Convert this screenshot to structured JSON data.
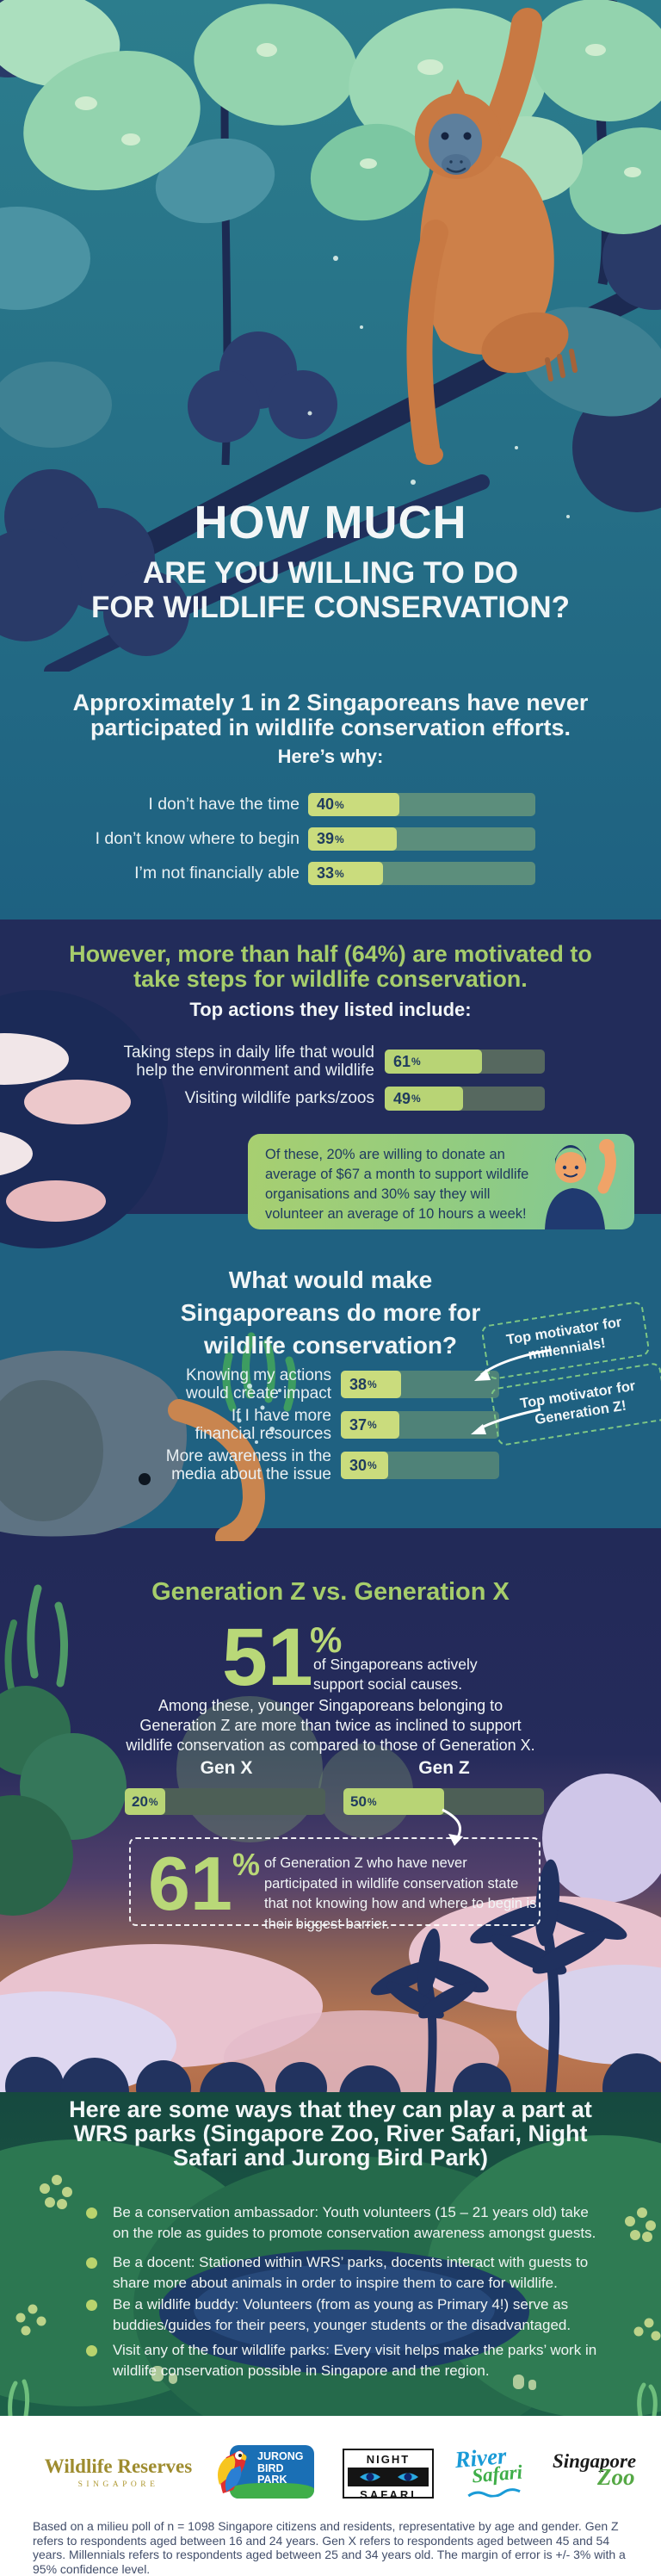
{
  "header": {
    "title_line1": "HOW MUCH",
    "title_line2": "ARE YOU WILLING TO DO",
    "title_line3": "FOR WILDLIFE CONSERVATION?"
  },
  "reasons": {
    "heading_line1": "Approximately 1 in 2 Singaporeans have never",
    "heading_line2": "participated in wildlife conservation efforts.",
    "subheading": "Here’s why:",
    "bars": [
      {
        "label": "I don’t have the time",
        "value": 40
      },
      {
        "label": "I don’t know where to begin",
        "value": 39
      },
      {
        "label": "I’m not financially able",
        "value": 33
      }
    ]
  },
  "motivated": {
    "heading_line1": "However, more than half (64%) are motivated to",
    "heading_line2": "take steps for wildlife conservation.",
    "subheading": "Top actions they listed include:",
    "bars": [
      {
        "label_line1": "Taking steps in daily life that would",
        "label_line2": "help the environment and wildlife",
        "value": 61
      },
      {
        "label_line1": "Visiting wildlife parks/zoos",
        "value": 49
      }
    ],
    "callout_text": "Of these, 20% are willing to donate an average of $67 a month to support wildlife organisations and 30% say they will volunteer an average of 10 hours a week!"
  },
  "do_more": {
    "heading_line1": "What would make",
    "heading_line2": "Singaporeans do more for",
    "heading_line3": "wildlife conservation?",
    "bars": [
      {
        "label_line1": "Knowing my actions",
        "label_line2": "would create impact",
        "value": 38
      },
      {
        "label_line1": "If I have more",
        "label_line2": "financial resources",
        "value": 37
      },
      {
        "label_line1": "More awareness in the",
        "label_line2": "media about the issue",
        "value": 30
      }
    ],
    "millennials_callout_line1": "Top motivator for",
    "millennials_callout_line2": "millennials!",
    "genz_callout_line1": "Top motivator for",
    "genz_callout_line2": "Generation Z!"
  },
  "generations": {
    "heading": "Generation Z vs. Generation X",
    "big_stat_value": "51",
    "big_stat_unit": "%",
    "big_stat_caption_line1": "of Singaporeans actively",
    "big_stat_caption_line2": "support social causes.",
    "paragraph_line1": "Among these, younger Singaporeans belonging to",
    "paragraph_line2": "Generation Z are more than twice as inclined to support",
    "paragraph_line3": "wildlife conservation as compared to those of Generation X.",
    "gen_x_label": "Gen X",
    "gen_z_label": "Gen Z",
    "gen_x_value": 20,
    "gen_z_value": 50,
    "barrier_value": "61",
    "barrier_unit": "%",
    "barrier_text": "of Generation Z who have never participated in wildlife conservation state that not knowing how and where to begin is their biggest barrier."
  },
  "ways": {
    "heading_line1": "Here are some ways that they can play a part at",
    "heading_line2": "WRS parks (Singapore Zoo, River Safari, Night",
    "heading_line3": "Safari and Jurong Bird Park)",
    "bullets": [
      "Be a conservation ambassador: Youth volunteers (15 – 21 years old) take on the role as guides to promote conservation awareness amongst guests.",
      "Be a docent: Stationed within WRS’ parks, docents interact with guests to share more about animals in order to inspire them to care for wildlife.",
      "Be a wildlife buddy: Volunteers (from as young as Primary 4!) serve as buddies/guides for their peers, younger students or the disadvantaged.",
      "Visit any of the four wildlife parks: Every visit helps make the parks’ work in wildlife conservation possible in Singapore and the region."
    ]
  },
  "footer": {
    "wrs_logo_line1": "Wildlife Reserves",
    "wrs_logo_line2": "SINGAPORE",
    "jurong_logo": "JURONG BIRD PARK",
    "night_logo_line1": "NIGHT",
    "night_logo_line2": "SAFARI",
    "river_logo_line1": "River",
    "river_logo_line2": "Safari",
    "zoo_logo_line1": "Singapore",
    "zoo_logo_line2": "Zoo",
    "disclaimer": "Based on a milieu poll of n = 1098 Singapore citizens and residents, representative by age and gender.  Gen Z refers to respondents aged between 16 and 24 years. Gen X refers to respondents aged between 45 and 54 years. Millennials refers to respondents aged between 25 and 34 years old. The margin of error is +/- 3% with a 95% confidence level."
  },
  "misc": {
    "pct": "%"
  },
  "colors": {
    "teal_background": "#1f6181",
    "navy_background": "#222c5a",
    "lime_bar_fill": "#cadc7d",
    "green_bar_fill": "#b8d475",
    "sage_bar_track": "#5c8e7c",
    "slate_bar_track": "#56685f",
    "headline_green": "#a6cd6b",
    "big_number_green": "#b9d878",
    "bar_value_navy": "#203c5e",
    "callout_gradient_start": "#a8cf70",
    "callout_gradient_end": "#7fc79b",
    "dashed_callout_green": "#7ec784",
    "wrs_gold": "#9e8c2f",
    "orangutan_orange": "#c87943"
  },
  "icons": [
    "jungle-canopy-illustration",
    "orangutan-illustration",
    "earth-illustration",
    "waving-man-illustration",
    "elephant-illustration",
    "seaweed-illustration",
    "sunset-clouds-illustration",
    "palm-tree-silhouette",
    "hills-pond-illustration",
    "bullet-dot",
    "curved-arrow",
    "parrot-icon",
    "cat-eyes-icon"
  ],
  "chart_data": [
    {
      "type": "bar",
      "title": "Here’s why:",
      "categories": [
        "I don’t have the time",
        "I don’t know where to begin",
        "I’m not financially able"
      ],
      "values": [
        40,
        39,
        33
      ],
      "unit": "%",
      "xlim": [
        0,
        100
      ],
      "orientation": "horizontal"
    },
    {
      "type": "bar",
      "title": "Top actions they listed include:",
      "categories": [
        "Taking steps in daily life that would help the environment and wildlife",
        "Visiting wildlife parks/zoos"
      ],
      "values": [
        61,
        49
      ],
      "unit": "%",
      "xlim": [
        0,
        100
      ],
      "orientation": "horizontal"
    },
    {
      "type": "bar",
      "title": "What would make Singaporeans do more for wildlife conservation?",
      "categories": [
        "Knowing my actions would create impact",
        "If I have more financial resources",
        "More awareness in the media about the issue"
      ],
      "values": [
        38,
        37,
        30
      ],
      "unit": "%",
      "xlim": [
        0,
        100
      ],
      "orientation": "horizontal",
      "annotations": [
        "Top motivator for millennials!",
        "Top motivator for Generation Z!"
      ]
    },
    {
      "type": "bar",
      "title": "Generation Z vs. Generation X",
      "categories": [
        "Gen X",
        "Gen Z"
      ],
      "values": [
        20,
        50
      ],
      "unit": "%",
      "xlim": [
        0,
        100
      ],
      "orientation": "horizontal"
    }
  ]
}
